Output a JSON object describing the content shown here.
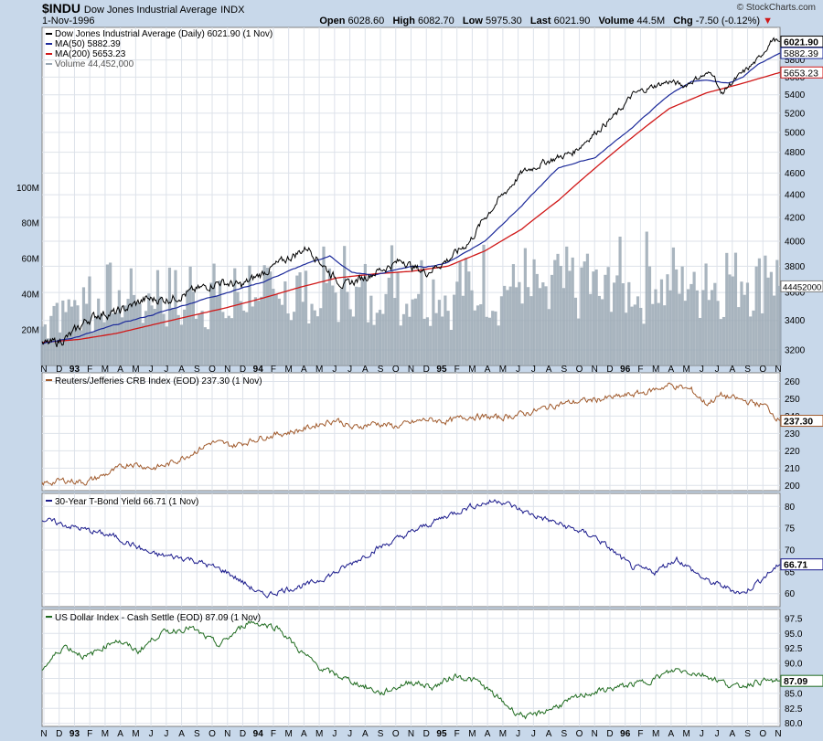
{
  "header": {
    "symbol": "$INDU",
    "name": "Dow Jones Industrial Average",
    "exchange": "INDX",
    "date": "1-Nov-1996",
    "credit": "© StockCharts.com",
    "open_label": "Open",
    "open": "6028.60",
    "high_label": "High",
    "high": "6082.70",
    "low_label": "Low",
    "low": "5975.30",
    "last_label": "Last",
    "last": "6021.90",
    "volume_label": "Volume",
    "volume": "44.5M",
    "chg_label": "Chg",
    "chg": "-7.50 (-0.12%)",
    "chg_arrow": "▼"
  },
  "colors": {
    "dow": "#000000",
    "ma50": "#1c2a9a",
    "ma200": "#d01818",
    "volume": "#9aa8b4",
    "crb": "#a05a2c",
    "bond": "#1a1a8c",
    "dollar": "#1f6b1f",
    "bg": "#c8d8ea",
    "panel": "#ffffff",
    "grid": "#dde2ea"
  },
  "chart_data": [
    {
      "type": "line",
      "title": "Dow Jones Industrial Average (Daily)",
      "scale": "log",
      "ylim": [
        3100,
        6200
      ],
      "yticks": [
        3200,
        3400,
        3600,
        3800,
        4000,
        4200,
        4400,
        4600,
        4800,
        5000,
        5200,
        5400,
        5600,
        5800
      ],
      "x_range": [
        "1992-11-02",
        "1996-11-01"
      ],
      "x_ticks": [
        "N",
        "D",
        "93",
        "F",
        "M",
        "A",
        "M",
        "J",
        "J",
        "A",
        "S",
        "O",
        "N",
        "D",
        "94",
        "F",
        "M",
        "A",
        "M",
        "J",
        "J",
        "A",
        "S",
        "O",
        "N",
        "D",
        "95",
        "F",
        "M",
        "A",
        "M",
        "J",
        "J",
        "A",
        "S",
        "O",
        "N",
        "D",
        "96",
        "F",
        "M",
        "A",
        "M",
        "J",
        "J",
        "A",
        "S",
        "O",
        "N"
      ],
      "legend": [
        {
          "label": "Dow Jones Industrial Average (Daily) 6021.90 (1 Nov)",
          "key": "dow"
        },
        {
          "label": "MA(50) 5882.39",
          "key": "ma50"
        },
        {
          "label": "MA(200) 5653.23",
          "key": "ma200"
        },
        {
          "label": "Volume 44,452,000",
          "key": "volume"
        }
      ],
      "last_labels": [
        {
          "text": "6021.90",
          "value": 6021.9,
          "key": "dow",
          "bold": true
        },
        {
          "text": "5882.39",
          "value": 5882.39,
          "key": "ma50",
          "bold": false
        },
        {
          "text": "5653.23",
          "value": 5653.23,
          "key": "ma200",
          "bold": false
        }
      ],
      "series": [
        {
          "name": "Dow Jones Industrial Average",
          "key": "dow",
          "x": [
            0,
            0.02,
            0.04,
            0.06,
            0.08,
            0.1,
            0.12,
            0.14,
            0.17,
            0.2,
            0.24,
            0.27,
            0.3,
            0.33,
            0.36,
            0.39,
            0.41,
            0.43,
            0.45,
            0.47,
            0.49,
            0.5,
            0.52,
            0.55,
            0.58,
            0.6,
            0.625,
            0.65,
            0.68,
            0.72,
            0.75,
            0.78,
            0.8,
            0.83,
            0.85,
            0.87,
            0.89,
            0.91,
            0.92,
            0.93,
            0.95,
            0.97,
            0.99,
            1.0
          ],
          "values": [
            3230,
            3250,
            3300,
            3400,
            3450,
            3450,
            3500,
            3550,
            3550,
            3600,
            3680,
            3650,
            3750,
            3850,
            3950,
            3750,
            3650,
            3700,
            3750,
            3800,
            3850,
            3800,
            3750,
            3850,
            4000,
            4200,
            4400,
            4600,
            4700,
            4800,
            5000,
            5200,
            5400,
            5500,
            5550,
            5500,
            5600,
            5650,
            5400,
            5500,
            5650,
            5800,
            6050,
            6021.9
          ]
        },
        {
          "name": "MA(50)",
          "key": "ma50",
          "x": [
            0,
            0.05,
            0.1,
            0.15,
            0.2,
            0.25,
            0.3,
            0.35,
            0.39,
            0.42,
            0.45,
            0.5,
            0.52,
            0.55,
            0.6,
            0.65,
            0.7,
            0.75,
            0.8,
            0.85,
            0.88,
            0.9,
            0.93,
            0.95,
            0.97,
            1.0
          ],
          "values": [
            3240,
            3290,
            3370,
            3440,
            3520,
            3600,
            3680,
            3800,
            3880,
            3750,
            3730,
            3800,
            3790,
            3830,
            4000,
            4300,
            4650,
            4750,
            5050,
            5400,
            5550,
            5560,
            5530,
            5600,
            5750,
            5882.39
          ]
        },
        {
          "name": "MA(200)",
          "key": "ma200",
          "x": [
            0,
            0.05,
            0.1,
            0.15,
            0.2,
            0.25,
            0.3,
            0.35,
            0.4,
            0.45,
            0.5,
            0.55,
            0.6,
            0.65,
            0.7,
            0.75,
            0.8,
            0.85,
            0.9,
            0.95,
            1.0
          ],
          "values": [
            3250,
            3270,
            3310,
            3370,
            3430,
            3490,
            3560,
            3640,
            3710,
            3740,
            3760,
            3800,
            3920,
            4100,
            4350,
            4650,
            4950,
            5250,
            5420,
            5530,
            5653.23
          ]
        }
      ],
      "volume_axis": {
        "label_ticks": [
          "20M",
          "40M",
          "60M",
          "80M",
          "100M"
        ],
        "values_m": [
          20,
          40,
          60,
          80,
          100
        ],
        "ylim_m": [
          0,
          190
        ],
        "last_label": "44452000"
      },
      "volume_m": [
        22,
        35,
        28,
        40,
        30,
        44,
        26,
        38,
        42,
        31,
        36,
        48,
        25,
        39,
        44,
        33,
        41,
        29,
        46,
        37,
        32,
        50,
        35,
        28,
        43,
        38,
        47,
        30,
        41,
        36,
        55,
        33,
        44,
        39,
        29,
        48,
        42,
        35,
        51,
        38,
        44,
        31,
        47,
        39,
        53,
        35,
        42,
        48,
        37,
        44,
        40,
        33,
        49,
        45,
        38,
        52,
        41,
        36,
        47,
        43,
        50,
        39,
        45,
        34,
        51,
        42,
        48,
        40,
        56,
        44,
        39,
        47,
        52,
        41,
        45,
        38,
        55,
        47,
        43,
        50,
        44,
        49,
        40,
        58,
        46,
        42,
        53,
        48,
        51,
        44,
        47,
        60,
        50,
        45
      ]
    },
    {
      "type": "line",
      "title": "Reuters/Jefferies CRB Index (EOD)",
      "legend_label": "Reuters/Jefferies CRB Index (EOD) 237.30 (1 Nov)",
      "key": "crb",
      "ylim": [
        197,
        265
      ],
      "yticks": [
        200,
        210,
        220,
        230,
        240,
        250,
        260
      ],
      "last_label": "237.30",
      "last_value": 237.3,
      "x": [
        0,
        0.03,
        0.06,
        0.09,
        0.12,
        0.15,
        0.17,
        0.2,
        0.23,
        0.26,
        0.3,
        0.35,
        0.38,
        0.4,
        0.42,
        0.45,
        0.48,
        0.52,
        0.55,
        0.58,
        0.62,
        0.66,
        0.7,
        0.74,
        0.78,
        0.82,
        0.85,
        0.88,
        0.9,
        0.92,
        0.95,
        0.98,
        1.0
      ],
      "values": [
        201,
        203,
        202,
        207,
        213,
        210,
        212,
        218,
        225,
        223,
        228,
        232,
        236,
        238,
        233,
        236,
        234,
        238,
        237,
        240,
        239,
        242,
        247,
        249,
        251,
        254,
        258,
        255,
        247,
        252,
        249,
        246,
        237.3
      ]
    },
    {
      "type": "line",
      "title": "30-Year T-Bond Yield",
      "legend_label": "30-Year T-Bond Yield 66.71 (1 Nov)",
      "key": "bond",
      "ylim": [
        57,
        83
      ],
      "yticks": [
        60,
        65,
        70,
        75,
        80
      ],
      "last_label": "66.71",
      "last_value": 66.71,
      "x": [
        0,
        0.05,
        0.1,
        0.15,
        0.2,
        0.25,
        0.3,
        0.33,
        0.36,
        0.4,
        0.45,
        0.5,
        0.55,
        0.58,
        0.62,
        0.65,
        0.7,
        0.75,
        0.8,
        0.83,
        0.86,
        0.9,
        0.95,
        1.0
      ],
      "values": [
        77,
        75,
        73,
        69,
        68,
        65,
        59.5,
        61,
        62,
        65,
        70,
        74,
        78,
        80,
        81.5,
        79,
        76,
        73,
        66,
        65,
        68,
        63,
        60,
        66.71
      ]
    },
    {
      "type": "line",
      "title": "US Dollar Index - Cash Settle (EOD)",
      "legend_label": "US Dollar Index - Cash Settle (EOD) 87.09 (1 Nov)",
      "key": "dollar",
      "ylim": [
        79.5,
        99
      ],
      "yticks": [
        80.0,
        82.5,
        85.0,
        87.5,
        90.0,
        92.5,
        95.0,
        97.5
      ],
      "last_label": "87.09",
      "last_value": 87.09,
      "x": [
        0,
        0.03,
        0.06,
        0.1,
        0.13,
        0.16,
        0.2,
        0.24,
        0.28,
        0.32,
        0.35,
        0.38,
        0.42,
        0.46,
        0.5,
        0.53,
        0.56,
        0.59,
        0.62,
        0.64,
        0.66,
        0.7,
        0.74,
        0.78,
        0.82,
        0.86,
        0.9,
        0.94,
        0.97,
        1.0
      ],
      "values": [
        89,
        93,
        91,
        94,
        92,
        95,
        96,
        93,
        97,
        96,
        92,
        89,
        87,
        85,
        87,
        86,
        88,
        87,
        84,
        82,
        81,
        83,
        85,
        86,
        87,
        89,
        88,
        86,
        87,
        87.09
      ]
    }
  ]
}
